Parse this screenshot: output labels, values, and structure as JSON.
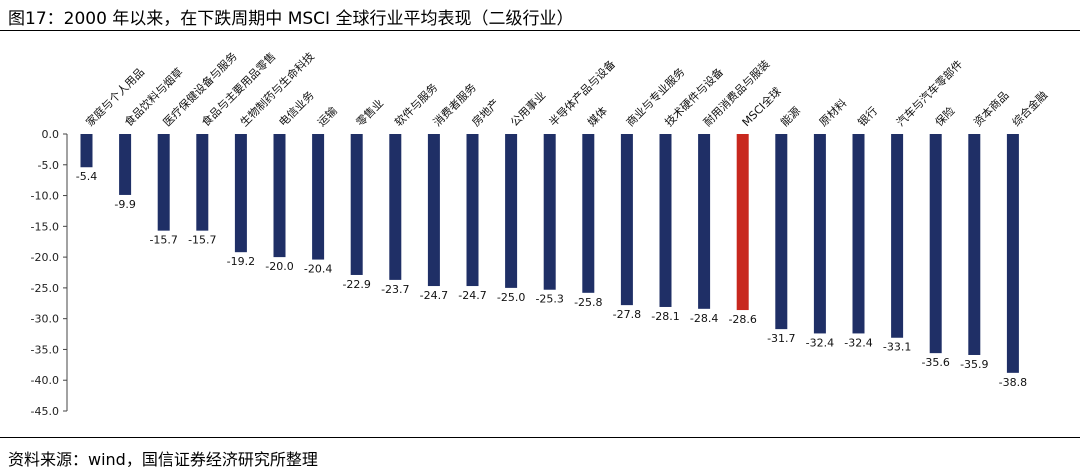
{
  "figure": {
    "title": "图17：2000 年以来，在下跌周期中 MSCI 全球行业平均表现（二级行业）",
    "source": "资料来源：wind，国信证券经济研究所整理"
  },
  "colors": {
    "bar": "#1f2f66",
    "highlight": "#c8281e",
    "axis": "#444444"
  },
  "chart_data": {
    "type": "bar",
    "title": "",
    "xlabel": "",
    "ylabel": "",
    "ylim": [
      -45,
      0
    ],
    "yticks": [
      "0.0",
      "-5.0",
      "-10.0",
      "-15.0",
      "-20.0",
      "-25.0",
      "-30.0",
      "-35.0",
      "-40.0",
      "-45.0"
    ],
    "grid": false,
    "highlight_category": "MSCI全球",
    "categories": [
      "家庭与个人用品",
      "食品饮料与烟草",
      "医疗保健设备与服务",
      "食品与主要用品零售",
      "生物制药与生命科技",
      "电信业务",
      "运输",
      "零售业",
      "软件与服务",
      "消费者服务",
      "房地产",
      "公用事业",
      "半导体产品与设备",
      "媒体",
      "商业与专业服务",
      "技术硬件与设备",
      "耐用消费品与服装",
      "MSCI全球",
      "能源",
      "原材料",
      "银行",
      "汽车与汽车零部件",
      "保险",
      "资本商品",
      "综合金融"
    ],
    "values": [
      -5.4,
      -9.9,
      -15.7,
      -15.7,
      -19.2,
      -20.0,
      -20.4,
      -22.9,
      -23.7,
      -24.7,
      -24.7,
      -25.0,
      -25.3,
      -25.8,
      -27.8,
      -28.1,
      -28.4,
      -28.6,
      -31.7,
      -32.4,
      -32.4,
      -33.1,
      -35.6,
      -35.9,
      -38.8
    ],
    "data_labels": [
      "-5.4",
      "-9.9",
      "-15.7",
      "-15.7",
      "-19.2",
      "-20.0",
      "-20.4",
      "-22.9",
      "-23.7",
      "-24.7",
      "-24.7",
      "-25.0",
      "-25.3",
      "-25.8",
      "-27.8",
      "-28.1",
      "-28.4",
      "-28.6",
      "-31.7",
      "-32.4",
      "-32.4",
      "-33.1",
      "-35.6",
      "-35.9",
      "-38.8"
    ]
  }
}
